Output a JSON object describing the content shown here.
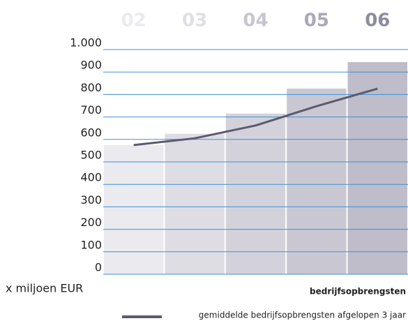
{
  "chart_data": {
    "type": "bar",
    "categories": [
      "02",
      "03",
      "04",
      "05",
      "06"
    ],
    "category_colors": [
      "#ebebef",
      "#dfdfe5",
      "#c6c6d1",
      "#a9a9ba",
      "#8d8da0"
    ],
    "y_label": "x miljoen EUR",
    "ylim": [
      0,
      1000
    ],
    "yticks": [
      0,
      100,
      200,
      300,
      400,
      500,
      600,
      700,
      800,
      {
        "value": 1000,
        "label": "1.000"
      },
      900
    ],
    "grid": true,
    "grid_color": "#3d8fd8",
    "series": [
      {
        "name": "bedrijfsopbrengsten",
        "type": "bar",
        "colors": [
          "#eaeaef",
          "#dedde4",
          "#d3d2db",
          "#c9c8d2",
          "#bebdc9"
        ],
        "values": [
          575,
          625,
          715,
          826,
          944
        ]
      },
      {
        "name": "gemiddelde bedrijfsopbrengsten afgelopen 3 jaar",
        "type": "line",
        "color": "#5b5b6f",
        "values": [
          575,
          605,
          662,
          748,
          826
        ]
      }
    ]
  }
}
